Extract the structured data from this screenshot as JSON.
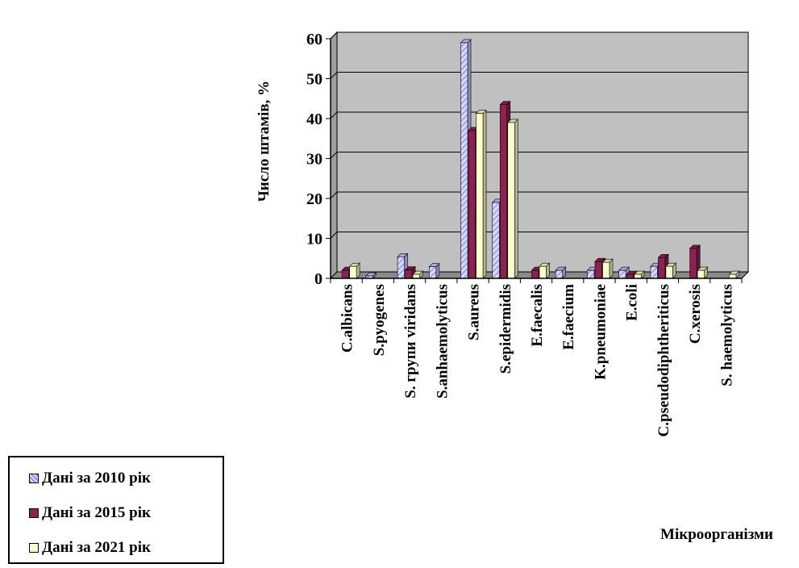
{
  "chart_data": {
    "type": "bar",
    "title": "",
    "ylabel": "Число штамів, %",
    "xlabel": "Мікроорганізми",
    "ylim": [
      0,
      60
    ],
    "yticks": [
      0,
      10,
      20,
      30,
      40,
      50,
      60
    ],
    "grid": true,
    "legend_position": "bottom-left",
    "categories": [
      "C.albicans",
      "S.pyogenes",
      "S. групи viridans",
      "S.anhaemolyticus",
      "S.aureus",
      "S.epidermidis",
      "E.faecalis",
      "E.faecium",
      "K.pneumoniae",
      "E.coli",
      "C.pseudodiphtheriticus",
      "C.xerosis",
      "S. haemolyticus"
    ],
    "series": [
      {
        "name": "Дані за 2010 рік",
        "color": "#c8c8ff",
        "values": [
          0,
          0.6,
          5.4,
          2.9,
          59,
          19,
          0,
          2,
          2,
          2,
          3,
          0,
          0
        ]
      },
      {
        "name": "Дані за 2015 рік",
        "color": "#8b2251",
        "values": [
          2,
          0,
          2.1,
          0,
          37,
          43.5,
          2,
          0,
          4.2,
          1,
          5.2,
          7.5,
          0
        ]
      },
      {
        "name": "Дані за 2021 рік",
        "color": "#ffffcc",
        "values": [
          3,
          0,
          1,
          0,
          41.3,
          39,
          3,
          0,
          4,
          1,
          3,
          2,
          1
        ]
      }
    ]
  }
}
